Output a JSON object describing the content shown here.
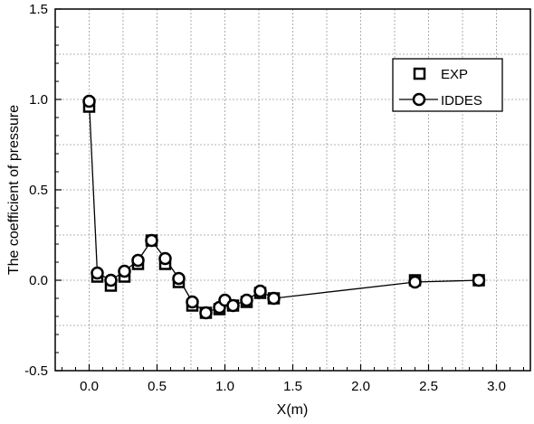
{
  "chart_data": {
    "type": "line",
    "title": "",
    "xlabel": "X(m)",
    "ylabel": "The coefficient of pressure",
    "xlim": [
      -0.25,
      3.25
    ],
    "ylim": [
      -0.5,
      1.5
    ],
    "xticks": [
      0.0,
      0.5,
      1.0,
      1.5,
      2.0,
      2.5,
      3.0
    ],
    "xtick_labels": [
      "0.0",
      "0.5",
      "1.0",
      "1.5",
      "2.0",
      "2.5",
      "3.0"
    ],
    "yticks": [
      -0.5,
      0.0,
      0.5,
      1.0,
      1.5
    ],
    "ytick_labels": [
      "-0.5",
      "0.0",
      "0.5",
      "1.0",
      "1.5"
    ],
    "grid": true,
    "legend_position": "top-right",
    "series": [
      {
        "name": "EXP",
        "marker": "square",
        "line": false,
        "x": [
          0.0,
          0.06,
          0.16,
          0.26,
          0.36,
          0.46,
          0.56,
          0.66,
          0.76,
          0.86,
          0.96,
          1.06,
          1.16,
          1.26,
          1.36,
          2.4,
          2.87
        ],
        "y": [
          0.96,
          0.02,
          -0.03,
          0.02,
          0.09,
          0.22,
          0.09,
          -0.01,
          -0.14,
          -0.18,
          -0.16,
          -0.14,
          -0.12,
          -0.07,
          -0.1,
          0.0,
          0.0
        ]
      },
      {
        "name": "IDDES",
        "marker": "circle",
        "line": true,
        "x": [
          0.0,
          0.06,
          0.16,
          0.26,
          0.36,
          0.46,
          0.56,
          0.66,
          0.76,
          0.86,
          0.96,
          1.0,
          1.06,
          1.16,
          1.26,
          1.36,
          2.4,
          2.87
        ],
        "y": [
          0.99,
          0.04,
          0.0,
          0.05,
          0.11,
          0.22,
          0.12,
          0.01,
          -0.12,
          -0.18,
          -0.15,
          -0.11,
          -0.14,
          -0.11,
          -0.06,
          -0.1,
          -0.01,
          0.0
        ]
      }
    ]
  }
}
